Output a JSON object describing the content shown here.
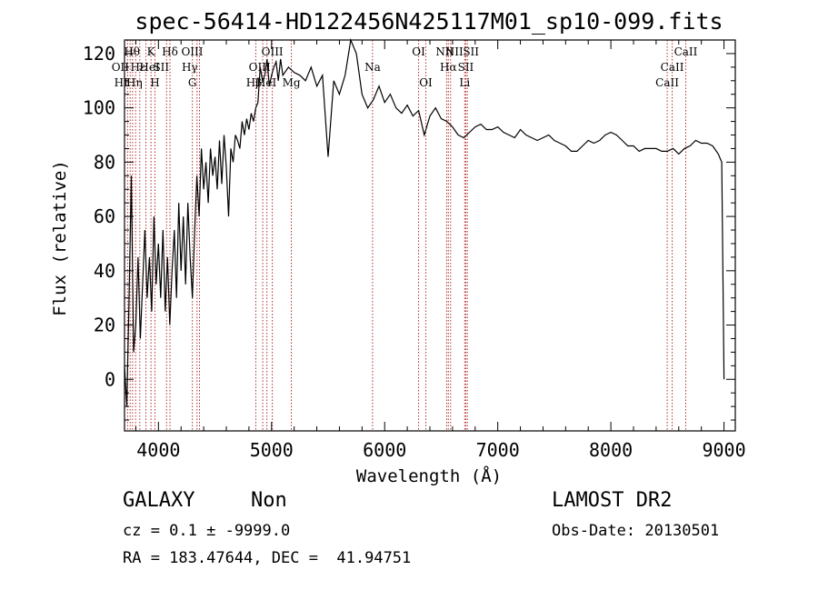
{
  "chart_data": {
    "type": "line",
    "title": "spec-56414-HD122456N425117M01_sp10-099.fits",
    "xlabel": "Wavelength (Å)",
    "ylabel": "Flux (relative)",
    "xlim": [
      3700,
      9100
    ],
    "ylim": [
      -19,
      125
    ],
    "x_ticks": [
      4000,
      5000,
      6000,
      7000,
      8000,
      9000
    ],
    "y_ticks": [
      0,
      20,
      40,
      60,
      80,
      100,
      120
    ],
    "grid": false,
    "series": [
      {
        "x": [
          3700,
          3720,
          3740,
          3760,
          3780,
          3800,
          3820,
          3840,
          3860,
          3880,
          3900,
          3920,
          3940,
          3960,
          3980,
          4000,
          4020,
          4040,
          4060,
          4080,
          4100,
          4120,
          4140,
          4160,
          4180,
          4200,
          4220,
          4240,
          4260,
          4280,
          4300,
          4320,
          4340,
          4360,
          4380,
          4400,
          4420,
          4440,
          4460,
          4480,
          4500,
          4520,
          4540,
          4560,
          4580,
          4600,
          4620,
          4640,
          4660,
          4680,
          4700,
          4720,
          4740,
          4760,
          4780,
          4800,
          4820,
          4840,
          4860,
          4880,
          4900,
          4920,
          4940,
          4960,
          4980,
          5000,
          5020,
          5040,
          5060,
          5080,
          5100,
          5150,
          5200,
          5250,
          5300,
          5350,
          5400,
          5450,
          5500,
          5550,
          5600,
          5650,
          5700,
          5750,
          5800,
          5850,
          5900,
          5950,
          6000,
          6050,
          6100,
          6150,
          6200,
          6250,
          6300,
          6350,
          6400,
          6450,
          6500,
          6550,
          6600,
          6650,
          6700,
          6750,
          6800,
          6850,
          6900,
          6950,
          7000,
          7050,
          7100,
          7150,
          7200,
          7250,
          7300,
          7350,
          7400,
          7450,
          7500,
          7550,
          7600,
          7650,
          7700,
          7750,
          7800,
          7850,
          7900,
          7950,
          8000,
          8050,
          8100,
          8150,
          8200,
          8250,
          8300,
          8350,
          8400,
          8450,
          8500,
          8550,
          8600,
          8650,
          8700,
          8750,
          8800,
          8850,
          8900,
          8950,
          8980,
          9000
        ],
        "values": [
          5,
          -10,
          30,
          75,
          10,
          20,
          45,
          15,
          35,
          55,
          30,
          45,
          25,
          60,
          35,
          50,
          30,
          55,
          25,
          45,
          20,
          40,
          55,
          30,
          65,
          40,
          60,
          35,
          65,
          45,
          30,
          55,
          75,
          60,
          85,
          70,
          80,
          65,
          85,
          75,
          82,
          70,
          88,
          72,
          90,
          78,
          60,
          85,
          80,
          90,
          88,
          85,
          95,
          90,
          96,
          92,
          98,
          95,
          100,
          102,
          115,
          110,
          112,
          118,
          108,
          112,
          115,
          117,
          110,
          118,
          112,
          115,
          113,
          112,
          110,
          115,
          108,
          112,
          82,
          110,
          105,
          112,
          125,
          120,
          105,
          100,
          103,
          108,
          102,
          105,
          100,
          98,
          101,
          97,
          99,
          90,
          97,
          100,
          96,
          95,
          93,
          90,
          89,
          91,
          93,
          94,
          92,
          92,
          93,
          91,
          90,
          89,
          92,
          90,
          89,
          88,
          89,
          90,
          88,
          87,
          86,
          84,
          84,
          86,
          88,
          87,
          88,
          90,
          91,
          90,
          88,
          86,
          86,
          84,
          85,
          85,
          85,
          84,
          84,
          85,
          83,
          85,
          86,
          88,
          87,
          87,
          86,
          83,
          80,
          0
        ]
      }
    ],
    "lines": [
      {
        "x": 3727,
        "label": "OII",
        "row": 1,
        "dx": -8
      },
      {
        "x": 3750,
        "label": "HI",
        "row": 2,
        "dx": -10
      },
      {
        "x": 3771,
        "label": "Hη",
        "row": 2,
        "dx": 2
      },
      {
        "x": 3798,
        "label": "Hθ",
        "row": 0,
        "dx": -4
      },
      {
        "x": 3835,
        "label": "Hε",
        "row": 1,
        "dx": -2
      },
      {
        "x": 3889,
        "label": "HeI",
        "row": 1,
        "dx": 4
      },
      {
        "x": 3934,
        "label": "K",
        "row": 0,
        "dx": 0
      },
      {
        "x": 3969,
        "label": "H",
        "row": 2,
        "dx": 0
      },
      {
        "x": 4072,
        "label": "SII",
        "row": 1,
        "dx": -6
      },
      {
        "x": 4102,
        "label": "Hδ",
        "row": 0,
        "dx": 0
      },
      {
        "x": 4300,
        "label": "G",
        "row": 2,
        "dx": 0
      },
      {
        "x": 4341,
        "label": "Hγ",
        "row": 1,
        "dx": -8
      },
      {
        "x": 4363,
        "label": "OIII",
        "row": 0,
        "dx": -8
      },
      {
        "x": 4861,
        "label": "Hβ",
        "row": 2,
        "dx": -2
      },
      {
        "x": 4922,
        "label": "HeI",
        "row": 2,
        "dx": 4
      },
      {
        "x": 4959,
        "label": "OIII",
        "row": 1,
        "dx": -8
      },
      {
        "x": 5007,
        "label": "OIII",
        "row": 0,
        "dx": 0
      },
      {
        "x": 5175,
        "label": "Mg",
        "row": 2,
        "dx": 0
      },
      {
        "x": 5893,
        "label": "Na",
        "row": 1,
        "dx": 0
      },
      {
        "x": 6300,
        "label": "OI",
        "row": 0,
        "dx": 0
      },
      {
        "x": 6364,
        "label": "OI",
        "row": 2,
        "dx": 0
      },
      {
        "x": 6548,
        "label": "NII",
        "row": 0,
        "dx": -2
      },
      {
        "x": 6563,
        "label": "Hα",
        "row": 1,
        "dx": 0
      },
      {
        "x": 6583,
        "label": "NII",
        "row": 0,
        "dx": 4
      },
      {
        "x": 6708,
        "label": "Li",
        "row": 2,
        "dx": 0
      },
      {
        "x": 6717,
        "label": "SII",
        "row": 1,
        "dx": 0
      },
      {
        "x": 6731,
        "label": "SII",
        "row": 0,
        "dx": 4
      },
      {
        "x": 8498,
        "label": "CaII",
        "row": 2,
        "dx": 0
      },
      {
        "x": 8542,
        "label": "CaII",
        "row": 1,
        "dx": 0
      },
      {
        "x": 8662,
        "label": "CaII",
        "row": 0,
        "dx": 0
      }
    ]
  },
  "info": {
    "class": "GALAXY",
    "subclass": "Non",
    "survey": "LAMOST DR2",
    "cz": "cz = 0.1 ± -9999.0",
    "obs_date": "Obs-Date: 20130501",
    "coords": "RA = 183.47644, DEC =  41.94751"
  }
}
